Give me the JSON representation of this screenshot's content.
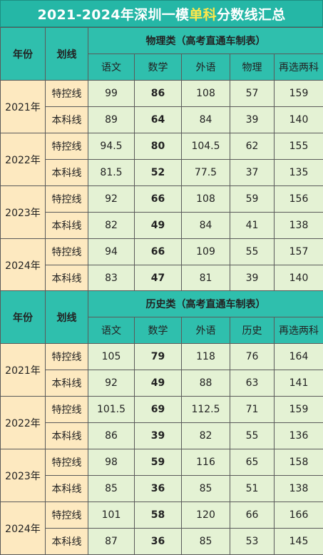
{
  "title": {
    "part1": "2021-2024年深圳一模",
    "highlight": "单科",
    "part2": "分数线汇总"
  },
  "physics": {
    "header": {
      "year": "年份",
      "line": "划线",
      "group": "物理类（高考直通车制表）",
      "cols": [
        "语文",
        "数学",
        "外语",
        "物理",
        "再选两科"
      ]
    },
    "rows": [
      {
        "year": "2021年",
        "lines": [
          {
            "type": "特控线",
            "v": [
              "99",
              "86",
              "108",
              "57",
              "159"
            ]
          },
          {
            "type": "本科线",
            "v": [
              "89",
              "64",
              "84",
              "39",
              "140"
            ]
          }
        ]
      },
      {
        "year": "2022年",
        "lines": [
          {
            "type": "特控线",
            "v": [
              "94.5",
              "80",
              "104.5",
              "62",
              "155"
            ]
          },
          {
            "type": "本科线",
            "v": [
              "81.5",
              "52",
              "77.5",
              "37",
              "135"
            ]
          }
        ]
      },
      {
        "year": "2023年",
        "lines": [
          {
            "type": "特控线",
            "v": [
              "92",
              "66",
              "108",
              "59",
              "156"
            ]
          },
          {
            "type": "本科线",
            "v": [
              "82",
              "49",
              "84",
              "41",
              "138"
            ]
          }
        ]
      },
      {
        "year": "2024年",
        "lines": [
          {
            "type": "特控线",
            "v": [
              "94",
              "66",
              "109",
              "55",
              "157"
            ]
          },
          {
            "type": "本科线",
            "v": [
              "83",
              "47",
              "81",
              "39",
              "140"
            ]
          }
        ]
      }
    ]
  },
  "history": {
    "header": {
      "year": "年份",
      "line": "划线",
      "group": "历史类（高考直通车制表）",
      "cols": [
        "语文",
        "数学",
        "外语",
        "历史",
        "再选两科"
      ]
    },
    "rows": [
      {
        "year": "2021年",
        "lines": [
          {
            "type": "特控线",
            "v": [
              "105",
              "79",
              "118",
              "76",
              "164"
            ]
          },
          {
            "type": "本科线",
            "v": [
              "92",
              "49",
              "88",
              "63",
              "141"
            ]
          }
        ]
      },
      {
        "year": "2022年",
        "lines": [
          {
            "type": "特控线",
            "v": [
              "101.5",
              "69",
              "112.5",
              "71",
              "159"
            ]
          },
          {
            "type": "本科线",
            "v": [
              "86",
              "39",
              "82",
              "55",
              "136"
            ]
          }
        ]
      },
      {
        "year": "2023年",
        "lines": [
          {
            "type": "特控线",
            "v": [
              "98",
              "59",
              "116",
              "65",
              "158"
            ]
          },
          {
            "type": "本科线",
            "v": [
              "85",
              "36",
              "85",
              "51",
              "138"
            ]
          }
        ]
      },
      {
        "year": "2024年",
        "lines": [
          {
            "type": "特控线",
            "v": [
              "101",
              "58",
              "120",
              "66",
              "166"
            ]
          },
          {
            "type": "本科线",
            "v": [
              "87",
              "36",
              "85",
              "53",
              "145"
            ]
          }
        ]
      }
    ]
  }
}
